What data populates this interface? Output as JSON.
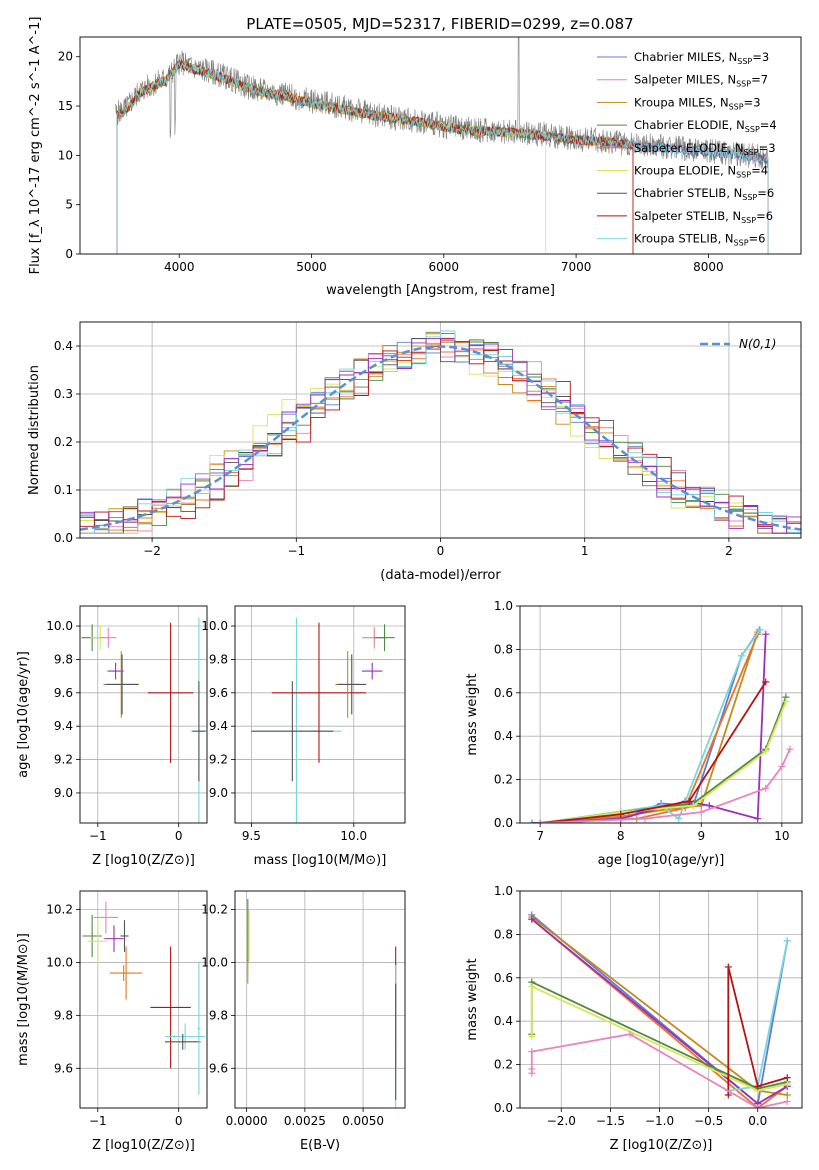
{
  "figure_title": "PLATE=0505, MJD=52317, FIBERID=0299, z=0.087",
  "models": [
    {
      "name": "Chabrier MILES",
      "nssp": "3",
      "color": "#5e7dd6"
    },
    {
      "name": "Salpeter MILES",
      "nssp": "7",
      "color": "#e884c0"
    },
    {
      "name": "Kroupa MILES",
      "nssp": "3",
      "color": "#c48a1a"
    },
    {
      "name": "Chabrier ELODIE",
      "nssp": "4",
      "color": "#4e8a3e"
    },
    {
      "name": "Salpeter ELODIE",
      "nssp": "3",
      "color": "#e8742a"
    },
    {
      "name": "Kroupa ELODIE",
      "nssp": "4",
      "color": "#d6e85a"
    },
    {
      "name": "Chabrier STELIB",
      "nssp": "6",
      "color": "#555555"
    },
    {
      "name": "Salpeter STELIB",
      "nssp": "6",
      "color": "#b41414"
    },
    {
      "name": "Kroupa STELIB",
      "nssp": "6",
      "color": "#78d6e0"
    }
  ],
  "chart_data": [
    {
      "type": "line",
      "id": "spectrum",
      "xlabel": "wavelength [Angstrom, rest frame]",
      "ylabel": "Flux [f_λ 10^-17 erg cm^-2 s^-1 A^-1]",
      "xlim": [
        3250,
        8700
      ],
      "ylim": [
        0,
        22
      ],
      "xticks": [
        4000,
        5000,
        6000,
        7000,
        8000
      ],
      "yticks": [
        0,
        5,
        10,
        15,
        20
      ],
      "grid": false,
      "legend": "top-right",
      "data_color": "#7f7f7f",
      "data_x": [
        3520,
        3600,
        3700,
        3800,
        3900,
        3950,
        4000,
        4100,
        4200,
        4300,
        4400,
        4500,
        4600,
        4700,
        4800,
        4900,
        5000,
        5100,
        5200,
        5300,
        5400,
        5500,
        5600,
        5700,
        5800,
        5900,
        6000,
        6100,
        6200,
        6300,
        6400,
        6500,
        6600,
        6700,
        6800,
        6900,
        7000,
        7100,
        7200,
        7300,
        7400,
        7500,
        7600,
        7700,
        7800,
        7900,
        8000,
        8100,
        8200,
        8300,
        8450
      ],
      "data_y": [
        14.2,
        14.8,
        16.5,
        17.2,
        17.8,
        18.5,
        19.5,
        18.9,
        18.6,
        18.2,
        17.7,
        17.0,
        16.6,
        16.4,
        16.2,
        15.8,
        15.5,
        15.3,
        15.0,
        14.7,
        14.4,
        14.1,
        13.9,
        13.7,
        13.5,
        13.3,
        13.0,
        12.8,
        12.6,
        12.5,
        12.5,
        12.4,
        12.3,
        12.2,
        12.0,
        11.9,
        11.7,
        11.6,
        11.5,
        11.3,
        11.2,
        11.1,
        10.9,
        10.8,
        10.7,
        10.5,
        10.4,
        10.3,
        10.2,
        10.0,
        9.8
      ],
      "model_x": [
        3520,
        3600,
        3700,
        3800,
        3900,
        4000,
        4100,
        4200,
        4300,
        4400,
        4500,
        4600,
        4700,
        4800,
        4900,
        5000,
        5200,
        5400,
        5600,
        5800,
        6000,
        6200,
        6400,
        6600,
        6800,
        7000,
        7200,
        7400,
        7600,
        7800,
        8000,
        8200,
        8450
      ],
      "model_y": [
        14.0,
        14.6,
        16.3,
        17.0,
        17.6,
        19.3,
        18.8,
        18.4,
        18.0,
        17.5,
        16.9,
        16.5,
        16.2,
        16.0,
        15.6,
        15.3,
        14.8,
        14.2,
        13.8,
        13.4,
        12.9,
        12.5,
        12.4,
        12.2,
        11.9,
        11.6,
        11.4,
        11.1,
        10.8,
        10.6,
        10.3,
        10.1,
        9.7
      ],
      "model_ranges": [
        [
          3530,
          8450
        ],
        [
          3530,
          8450
        ],
        [
          3530,
          7430
        ],
        [
          3530,
          7430
        ],
        [
          3530,
          7430
        ],
        [
          3530,
          6770
        ],
        [
          3530,
          8450
        ],
        [
          3530,
          7430
        ],
        [
          3530,
          8450
        ]
      ]
    },
    {
      "type": "line",
      "id": "residuals",
      "xlabel": "(data-model)/error",
      "ylabel": "Normed distribution",
      "xlim": [
        -2.5,
        2.5
      ],
      "ylim": [
        0,
        0.45
      ],
      "xticks": [
        -2,
        -1,
        0,
        1,
        2
      ],
      "xtick_labels": [
        "−2",
        "−1",
        "0",
        "1",
        "2"
      ],
      "yticks": [
        0,
        0.1,
        0.2,
        0.3,
        0.4
      ],
      "ytick_labels": [
        "0.0",
        "0.1",
        "0.2",
        "0.3",
        "0.4"
      ],
      "grid": true,
      "legend_label": "N(0,1)",
      "gaussian": {
        "mu": 0,
        "sigma": 1
      },
      "hist_bin_width": 0.1,
      "hist_shapes": [
        {
          "model": 0,
          "seed": 3,
          "shift": 0.0
        },
        {
          "model": 1,
          "seed": 7,
          "shift": 0.05
        },
        {
          "model": 2,
          "seed": 11,
          "shift": -0.05
        },
        {
          "model": 3,
          "seed": 13,
          "shift": 0.02
        },
        {
          "model": 4,
          "seed": 17,
          "shift": -0.02
        },
        {
          "model": 5,
          "seed": 19,
          "shift": -0.1
        },
        {
          "model": 6,
          "seed": 23,
          "shift": 0.03
        },
        {
          "model": 7,
          "seed": 29,
          "shift": 0.08
        },
        {
          "model": 8,
          "seed": 31,
          "shift": -0.03
        },
        {
          "model": -1,
          "color": "#9b30b8",
          "seed": 37,
          "shift": 0.0
        }
      ]
    },
    {
      "type": "scatter",
      "id": "age-vs-Z",
      "xlabel": "Z [log10(Z/Z⊙)]",
      "ylabel": "age [log10(age/yr)]",
      "xlim": [
        -1.22,
        0.35
      ],
      "ylim": [
        8.82,
        10.12
      ],
      "xticks": [
        -1,
        0
      ],
      "xtick_labels": [
        "−1",
        "0"
      ],
      "yticks": [
        9.0,
        9.2,
        9.4,
        9.6,
        9.8,
        10.0
      ],
      "ytick_labels": [
        "9.0",
        "9.2",
        "9.4",
        "9.6",
        "9.8",
        "10.0"
      ],
      "grid": true,
      "points": [
        {
          "c": "#4e8a3e",
          "x": -1.07,
          "y": 9.93,
          "xe": 0.13,
          "ye": 0.08
        },
        {
          "c": "#d6e85a",
          "x": -0.97,
          "y": 9.93,
          "xe": 0.12,
          "ye": 0.07
        },
        {
          "c": "#e884c0",
          "x": -0.87,
          "y": 9.93,
          "xe": 0.1,
          "ye": 0.06
        },
        {
          "c": "#9b30b8",
          "x": -0.78,
          "y": 9.73,
          "xe": 0.1,
          "ye": 0.05
        },
        {
          "c": "#c48a1a",
          "x": -0.71,
          "y": 9.65,
          "xe": 0.22,
          "ye": 0.2
        },
        {
          "c": "#555555",
          "x": -0.7,
          "y": 9.65,
          "xe": 0.2,
          "ye": 0.18
        },
        {
          "c": "#b41414",
          "x": -0.1,
          "y": 9.6,
          "xe": 0.28,
          "ye": 0.42
        },
        {
          "c": "#78d6e0",
          "x": 0.25,
          "y": 9.37,
          "xe": 0.1,
          "ye": 0.68
        },
        {
          "c": "#555555",
          "x": 0.25,
          "y": 9.37,
          "xe": 0.08,
          "ye": 0.3
        }
      ]
    },
    {
      "type": "scatter",
      "id": "age-vs-mass",
      "xlabel": "mass [log10(M/M⊙)]",
      "ylabel": "",
      "xlim": [
        9.42,
        10.25
      ],
      "ylim": [
        8.82,
        10.12
      ],
      "xticks": [
        9.5,
        10.0
      ],
      "xtick_labels": [
        "9.5",
        "10.0"
      ],
      "yticks": [
        9.0,
        9.2,
        9.4,
        9.6,
        9.8,
        10.0
      ],
      "ytick_labels": [
        "9.0",
        "9.2",
        "9.4",
        "9.6",
        "9.8",
        "10.0"
      ],
      "grid": true,
      "points": [
        {
          "c": "#78d6e0",
          "x": 9.72,
          "y": 9.37,
          "xe": 0.22,
          "ye": 0.68
        },
        {
          "c": "#555555",
          "x": 9.7,
          "y": 9.37,
          "xe": 0.2,
          "ye": 0.3
        },
        {
          "c": "#b41414",
          "x": 9.83,
          "y": 9.6,
          "xe": 0.23,
          "ye": 0.42
        },
        {
          "c": "#c48a1a",
          "x": 9.97,
          "y": 9.65,
          "xe": 0.06,
          "ye": 0.2
        },
        {
          "c": "#555555",
          "x": 9.99,
          "y": 9.65,
          "xe": 0.07,
          "ye": 0.18
        },
        {
          "c": "#9b30b8",
          "x": 10.09,
          "y": 9.73,
          "xe": 0.05,
          "ye": 0.05
        },
        {
          "c": "#d6e85a",
          "x": 10.1,
          "y": 9.93,
          "xe": 0.05,
          "ye": 0.07
        },
        {
          "c": "#e884c0",
          "x": 10.1,
          "y": 9.93,
          "xe": 0.06,
          "ye": 0.06
        },
        {
          "c": "#4e8a3e",
          "x": 10.15,
          "y": 9.93,
          "xe": 0.05,
          "ye": 0.08
        }
      ]
    },
    {
      "type": "line",
      "id": "massweight-vs-age",
      "xlabel": "age [log10(age/yr)]",
      "ylabel": "mass weight",
      "xlim": [
        6.75,
        10.25
      ],
      "ylim": [
        0,
        1.0
      ],
      "xticks": [
        7,
        8,
        9,
        10
      ],
      "yticks": [
        0,
        0.2,
        0.4,
        0.6,
        0.8,
        1.0
      ],
      "ytick_labels": [
        "0.0",
        "0.2",
        "0.4",
        "0.6",
        "0.8",
        "1.0"
      ],
      "grid": true,
      "series": [
        {
          "c": "#5e7dd6",
          "x": [
            6.9,
            7.5,
            8.1,
            8.5,
            8.9,
            9.5,
            9.72
          ],
          "y": [
            0.0,
            0.01,
            0.03,
            0.09,
            0.08,
            0.77,
            0.89
          ]
        },
        {
          "c": "#c48a1a",
          "x": [
            7.0,
            8.0,
            8.7,
            9.0,
            9.7
          ],
          "y": [
            0.0,
            0.03,
            0.07,
            0.08,
            0.88
          ]
        },
        {
          "c": "#e8742a",
          "x": [
            7.0,
            8.2,
            8.8,
            9.7
          ],
          "y": [
            0.0,
            0.02,
            0.07,
            0.87
          ]
        },
        {
          "c": "#9b30b8",
          "x": [
            7.0,
            8.0,
            8.8,
            9.1,
            9.7,
            9.8
          ],
          "y": [
            0.0,
            0.02,
            0.1,
            0.08,
            0.02,
            0.87
          ]
        },
        {
          "c": "#78d6e0",
          "x": [
            7.0,
            8.5,
            8.72,
            9.5,
            9.73
          ],
          "y": [
            0.0,
            0.08,
            0.02,
            0.77,
            0.89
          ]
        },
        {
          "c": "#4e8a3e",
          "x": [
            7.0,
            8.0,
            8.9,
            9.8,
            10.05
          ],
          "y": [
            0.0,
            0.05,
            0.09,
            0.34,
            0.58
          ]
        },
        {
          "c": "#d6e85a",
          "x": [
            7.0,
            8.0,
            8.9,
            9.8,
            10.05
          ],
          "y": [
            0.0,
            0.05,
            0.08,
            0.33,
            0.56
          ]
        },
        {
          "c": "#b41414",
          "x": [
            7.0,
            8.0,
            8.85,
            9.8
          ],
          "y": [
            0.0,
            0.04,
            0.1,
            0.65
          ]
        },
        {
          "c": "#e884c0",
          "x": [
            7.0,
            8.3,
            9.0,
            9.8,
            10.0,
            10.1
          ],
          "y": [
            0.0,
            0.02,
            0.05,
            0.16,
            0.26,
            0.34
          ]
        }
      ]
    },
    {
      "type": "scatter",
      "id": "mass-vs-Z",
      "xlabel": "Z [log10(Z/Z⊙)]",
      "ylabel": "mass [log10(M/M⊙)]",
      "xlim": [
        -1.22,
        0.35
      ],
      "ylim": [
        9.45,
        10.27
      ],
      "xticks": [
        -1,
        0
      ],
      "xtick_labels": [
        "−1",
        "0"
      ],
      "yticks": [
        9.6,
        9.8,
        10.0,
        10.2
      ],
      "ytick_labels": [
        "9.6",
        "9.8",
        "10.0",
        "10.2"
      ],
      "grid": true,
      "points": [
        {
          "c": "#4e8a3e",
          "x": -1.07,
          "y": 10.1,
          "xe": 0.12,
          "ye": 0.08
        },
        {
          "c": "#d6e85a",
          "x": -1.0,
          "y": 10.08,
          "xe": 0.12,
          "ye": 0.09
        },
        {
          "c": "#e884c0",
          "x": -0.9,
          "y": 10.17,
          "xe": 0.15,
          "ye": 0.06
        },
        {
          "c": "#9b30b8",
          "x": -0.8,
          "y": 10.09,
          "xe": 0.12,
          "ye": 0.05
        },
        {
          "c": "#555555",
          "x": -0.67,
          "y": 10.1,
          "xe": 0.05,
          "ye": 0.06
        },
        {
          "c": "#e8742a",
          "x": -0.65,
          "y": 9.96,
          "xe": 0.2,
          "ye": 0.1
        },
        {
          "c": "#c48a1a",
          "x": -0.68,
          "y": 9.96,
          "xe": 0.04,
          "ye": 0.03
        },
        {
          "c": "#b41414",
          "x": -0.1,
          "y": 9.83,
          "xe": 0.25,
          "ye": 0.23
        },
        {
          "c": "#78d6e0",
          "x": 0.08,
          "y": 9.72,
          "xe": 0.25,
          "ye": 0.05
        },
        {
          "c": "#555555",
          "x": 0.05,
          "y": 9.7,
          "xe": 0.22,
          "ye": 0.03
        },
        {
          "c": "#78d6e0",
          "x": 0.25,
          "y": 9.75,
          "xe": 0.02,
          "ye": 0.25
        }
      ]
    },
    {
      "type": "scatter",
      "id": "mass-vs-EBV",
      "xlabel": "E(B-V)",
      "ylabel": "",
      "xlim": [
        -0.0005,
        0.0068
      ],
      "ylim": [
        9.45,
        10.27
      ],
      "xticks": [
        0.0,
        0.0025,
        0.005
      ],
      "xtick_labels": [
        "0.0000",
        "0.0025",
        "0.0050"
      ],
      "yticks": [
        9.6,
        9.8,
        10.0,
        10.2
      ],
      "ytick_labels": [
        "9.6",
        "9.8",
        "10.0",
        "10.2"
      ],
      "grid": true,
      "points": [
        {
          "c": "#4e8a3e",
          "x": 5e-05,
          "y": 10.12,
          "xe": 2e-05,
          "ye": 0.12
        },
        {
          "c": "#d6e85a",
          "x": 0.0001,
          "y": 10.1,
          "xe": 2e-05,
          "ye": 0.1
        },
        {
          "c": "#c48a1a",
          "x": 5e-05,
          "y": 9.96,
          "xe": 2e-05,
          "ye": 0.04
        },
        {
          "c": "#b41414",
          "x": 0.0064,
          "y": 9.83,
          "xe": 2e-05,
          "ye": 0.23
        },
        {
          "c": "#78d6e0",
          "x": 0.0064,
          "y": 9.72,
          "xe": 2e-05,
          "ye": 0.27
        },
        {
          "c": "#555555",
          "x": 0.0064,
          "y": 9.7,
          "xe": 2e-05,
          "ye": 0.22
        }
      ]
    },
    {
      "type": "line",
      "id": "massweight-vs-Z",
      "xlabel": "Z [log10(Z/Z⊙)]",
      "ylabel": "mass weight",
      "xlim": [
        -2.42,
        0.45
      ],
      "ylim": [
        0,
        1.0
      ],
      "xticks": [
        -2.0,
        -1.5,
        -1.0,
        -0.5,
        0.0
      ],
      "xtick_labels": [
        "−2.0",
        "−1.5",
        "−1.0",
        "−0.5",
        "0.0"
      ],
      "yticks": [
        0,
        0.2,
        0.4,
        0.6,
        0.8,
        1.0
      ],
      "ytick_labels": [
        "0.0",
        "0.2",
        "0.4",
        "0.6",
        "0.8",
        "1.0"
      ],
      "grid": true,
      "series": [
        {
          "c": "#5e7dd6",
          "x": [
            -2.3,
            0.0,
            0.3
          ],
          "y": [
            0.89,
            0.02,
            0.77
          ]
        },
        {
          "c": "#c48a1a",
          "x": [
            -2.3,
            0.0,
            0.3
          ],
          "y": [
            0.88,
            0.08,
            0.06
          ]
        },
        {
          "c": "#e8742a",
          "x": [
            -2.3,
            0.0,
            0.3
          ],
          "y": [
            0.87,
            0.0,
            0.1
          ]
        },
        {
          "c": "#9b30b8",
          "x": [
            -2.3,
            0.0,
            0.3
          ],
          "y": [
            0.87,
            0.02,
            0.1
          ]
        },
        {
          "c": "#78d6e0",
          "x": [
            -0.3,
            0.0,
            0.3
          ],
          "y": [
            0.08,
            0.1,
            0.77
          ]
        },
        {
          "c": "#4e8a3e",
          "x": [
            -2.3,
            -2.3,
            0.0,
            0.3
          ],
          "y": [
            0.34,
            0.58,
            0.09,
            0.12
          ]
        },
        {
          "c": "#d6e85a",
          "x": [
            -2.3,
            -2.3,
            0.0,
            0.3
          ],
          "y": [
            0.33,
            0.56,
            0.08,
            0.11
          ]
        },
        {
          "c": "#b41414",
          "x": [
            -0.3,
            -0.3,
            0.0,
            0.3
          ],
          "y": [
            0.06,
            0.65,
            0.1,
            0.14
          ]
        },
        {
          "c": "#e884c0",
          "x": [
            -2.3,
            -2.3,
            -2.3,
            -1.3,
            0.0,
            0.3
          ],
          "y": [
            0.16,
            0.18,
            0.26,
            0.34,
            0.0,
            0.03
          ]
        }
      ]
    }
  ]
}
